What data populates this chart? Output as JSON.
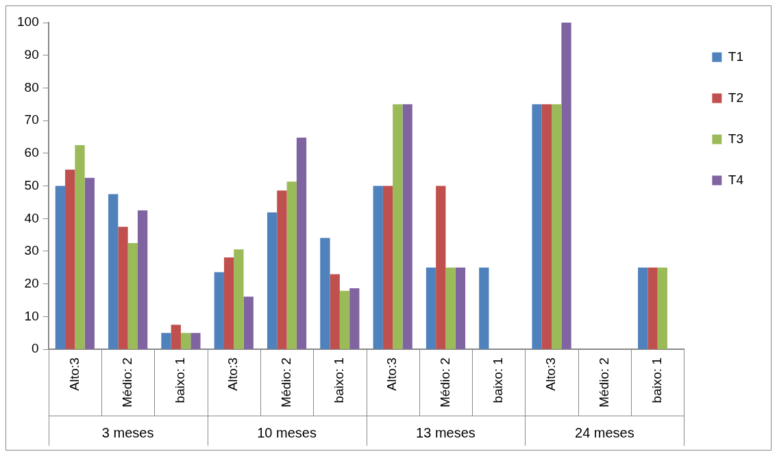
{
  "chart_data": {
    "type": "bar",
    "categories": [
      "Alto:3",
      "Médio: 2",
      "baixo: 1",
      "Alto:3",
      "Médio: 2",
      "baixo: 1",
      "Alto:3",
      "Médio: 2",
      "baixo: 1",
      "Alto:3",
      "Médio: 2",
      "baixo: 1"
    ],
    "annotations": [
      "3 meses",
      "10 meses",
      "13 meses",
      "24 meses"
    ],
    "series": [
      {
        "name": "T1",
        "color": "#4f81bd",
        "values": [
          50,
          47.5,
          5,
          23.6,
          41.9,
          34.1,
          50,
          25,
          25,
          75,
          0,
          25
        ]
      },
      {
        "name": "T2",
        "color": "#c0504d",
        "values": [
          55,
          37.5,
          7.5,
          28.1,
          48.6,
          23,
          50,
          50,
          0,
          75,
          0,
          25
        ]
      },
      {
        "name": "T3",
        "color": "#9bbb59",
        "values": [
          62.5,
          32.5,
          5,
          30.6,
          51.3,
          17.9,
          75,
          25,
          0,
          75,
          0,
          25
        ]
      },
      {
        "name": "T4",
        "color": "#8064a2",
        "values": [
          52.5,
          42.5,
          5,
          16.1,
          64.8,
          18.7,
          75,
          25,
          0,
          100,
          0,
          0
        ]
      }
    ],
    "ylim": [
      0,
      100
    ],
    "yticks": [
      0,
      10,
      20,
      30,
      40,
      50,
      60,
      70,
      80,
      90,
      100
    ],
    "grid": false,
    "legend": "right"
  }
}
